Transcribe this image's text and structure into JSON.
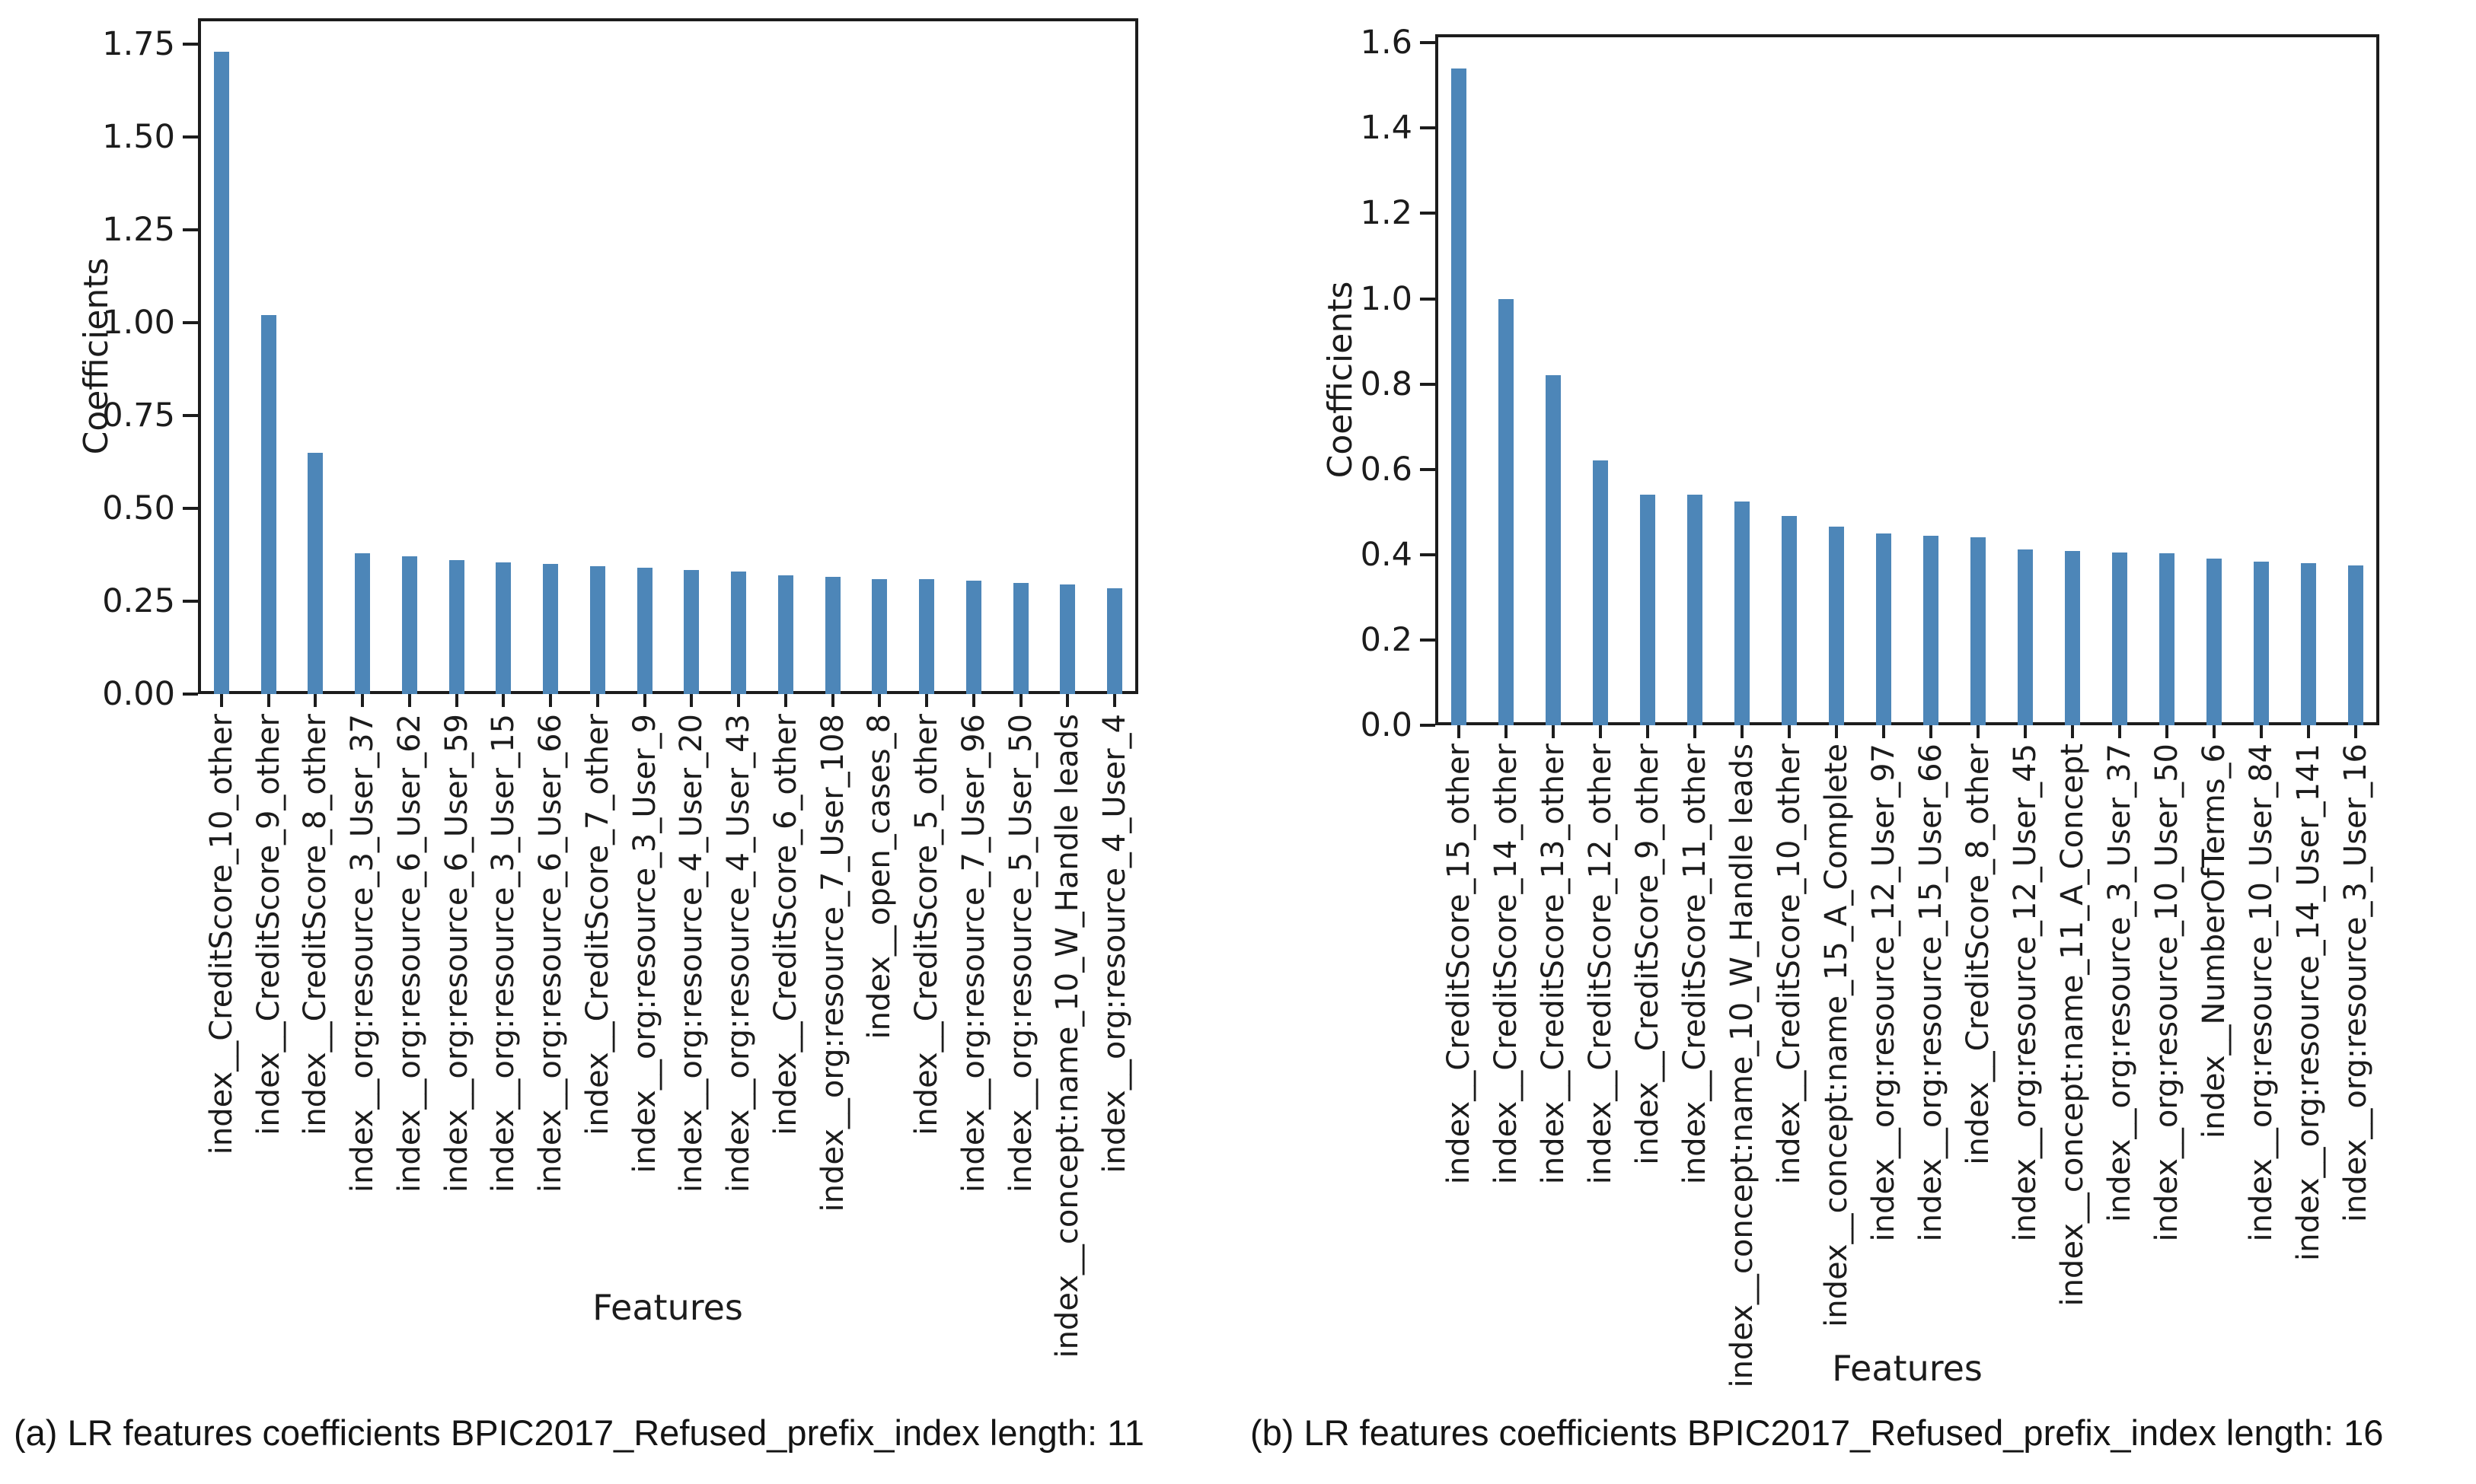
{
  "figures": [
    {
      "caption": "(a) LR features coefficients BPIC2017_Refused_prefix_index length: 11"
    },
    {
      "caption": "(b) LR features coefficients BPIC2017_Refused_prefix_index length: 16"
    }
  ],
  "chart_data": [
    {
      "type": "bar",
      "title": "",
      "xlabel": "Features",
      "ylabel": "Coefficients",
      "bar_color": "#4D86B8",
      "axis_color": "#1c1c1c",
      "ylim": [
        0,
        1.82
      ],
      "grid": false,
      "legend": "none",
      "yticks": [
        0.0,
        0.25,
        0.5,
        0.75,
        1.0,
        1.25,
        1.5,
        1.75
      ],
      "ytick_labels": [
        "0.00",
        "0.25",
        "0.50",
        "0.75",
        "1.00",
        "1.25",
        "1.50",
        "1.75"
      ],
      "categories": [
        "index__CreditScore_10_other",
        "index__CreditScore_9_other",
        "index__CreditScore_8_other",
        "index__org:resource_3_User_37",
        "index__org:resource_6_User_62",
        "index__org:resource_6_User_59",
        "index__org:resource_3_User_15",
        "index__org:resource_6_User_66",
        "index__CreditScore_7_other",
        "index__org:resource_3_User_9",
        "index__org:resource_4_User_20",
        "index__org:resource_4_User_43",
        "index__CreditScore_6_other",
        "index__org:resource_7_User_108",
        "index__open_cases_8",
        "index__CreditScore_5_other",
        "index__org:resource_7_User_96",
        "index__org:resource_5_User_50",
        "index__concept:name_10_W_Handle leads",
        "index__org:resource_4_User_4"
      ],
      "values": [
        1.73,
        1.02,
        0.65,
        0.38,
        0.37,
        0.36,
        0.355,
        0.35,
        0.345,
        0.34,
        0.335,
        0.33,
        0.32,
        0.315,
        0.31,
        0.31,
        0.305,
        0.3,
        0.295,
        0.285
      ]
    },
    {
      "type": "bar",
      "title": "",
      "xlabel": "Features",
      "ylabel": "Coefficients",
      "bar_color": "#4D86B8",
      "axis_color": "#1c1c1c",
      "ylim": [
        0,
        1.62
      ],
      "grid": false,
      "legend": "none",
      "yticks": [
        0.0,
        0.2,
        0.4,
        0.6,
        0.8,
        1.0,
        1.2,
        1.4,
        1.6
      ],
      "ytick_labels": [
        "0.0",
        "0.2",
        "0.4",
        "0.6",
        "0.8",
        "1.0",
        "1.2",
        "1.4",
        "1.6"
      ],
      "categories": [
        "index__CreditScore_15_other",
        "index__CreditScore_14_other",
        "index__CreditScore_13_other",
        "index__CreditScore_12_other",
        "index__CreditScore_9_other",
        "index__CreditScore_11_other",
        "index__concept:name_10_W_Handle leads",
        "index__CreditScore_10_other",
        "index__concept:name_15_A_Complete",
        "index__org:resource_12_User_97",
        "index__org:resource_15_User_66",
        "index__CreditScore_8_other",
        "index__org:resource_12_User_45",
        "index__concept:name_11_A_Concept",
        "index__org:resource_3_User_37",
        "index__org:resource_10_User_50",
        "index__NumberOfTerms_6",
        "index__org:resource_10_User_84",
        "index__org:resource_14_User_141",
        "index__org:resource_3_User_16"
      ],
      "values": [
        1.54,
        1.0,
        0.82,
        0.62,
        0.54,
        0.54,
        0.525,
        0.49,
        0.465,
        0.45,
        0.445,
        0.44,
        0.413,
        0.408,
        0.405,
        0.403,
        0.39,
        0.383,
        0.38,
        0.375
      ]
    }
  ]
}
